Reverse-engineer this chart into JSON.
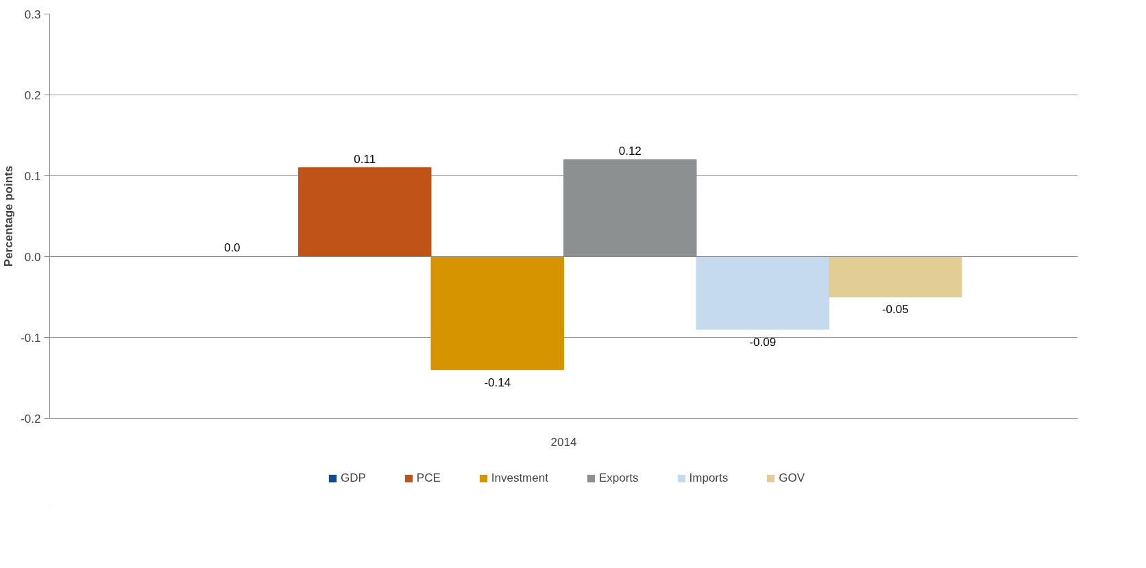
{
  "chart_data": {
    "type": "bar",
    "ylabel": "Percentage points",
    "categories": [
      "2014"
    ],
    "series": [
      {
        "name": "GDP",
        "color": "#0e4a8c",
        "values": [
          0.0
        ],
        "value_labels": [
          "0.0"
        ]
      },
      {
        "name": "PCE",
        "color": "#c05418",
        "values": [
          0.11
        ],
        "value_labels": [
          "0.11"
        ]
      },
      {
        "name": "Investment",
        "color": "#d69500",
        "values": [
          -0.14
        ],
        "value_labels": [
          "-0.14"
        ]
      },
      {
        "name": "Exports",
        "color": "#8c9090",
        "values": [
          0.12
        ],
        "value_labels": [
          "0.12"
        ]
      },
      {
        "name": "Imports",
        "color": "#c5d9ef",
        "values": [
          -0.09
        ],
        "value_labels": [
          "-0.09"
        ]
      },
      {
        "name": "GOV",
        "color": "#e2cd94",
        "values": [
          -0.05
        ],
        "value_labels": [
          "-0.05"
        ]
      }
    ],
    "ylim": [
      -0.2,
      0.3
    ],
    "yticks": [
      {
        "value": -0.2,
        "label": "-0.2"
      },
      {
        "value": -0.1,
        "label": "-0.1"
      },
      {
        "value": 0,
        "label": "0.0"
      },
      0.1,
      0.2,
      0.3
    ],
    "grid": "y",
    "legend": "bottom"
  }
}
